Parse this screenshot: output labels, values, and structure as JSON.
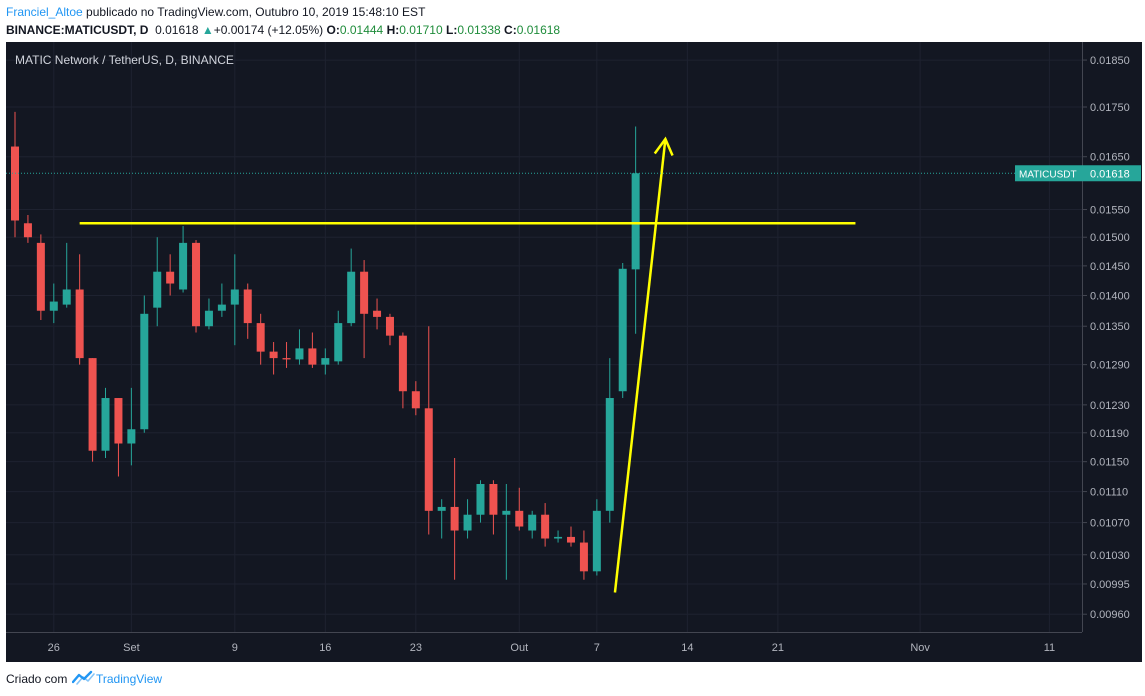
{
  "header": {
    "author": "Franciel_Altoe",
    "published": " publicado no TradingView.com, Outubro 10, 2019 15:48:10 EST",
    "symbol": "BINANCE:MATICUSDT, D",
    "last": "0.01618",
    "up_arrow": "▲",
    "change": "+0.00174 (+12.05%)",
    "o_label": "O:",
    "o_value": "0.01444",
    "h_label": "H:",
    "h_value": "0.01710",
    "l_label": "L:",
    "l_value": "0.01338",
    "c_label": "C:",
    "c_value": "0.01618"
  },
  "footer": {
    "created_with": "Criado com",
    "brand": "TradingView",
    "logo": "tradingview-logo-icon"
  },
  "colors": {
    "background": "#131722",
    "bull": "#26a69a",
    "bear": "#ef5350",
    "annotation": "#ffff00",
    "price_line": "#26a69a",
    "axis_text": "#b2b5be",
    "grid": "#1e2230"
  },
  "chart_data": {
    "type": "candlestick",
    "title": "MATIC Network / TetherUS, D, BINANCE",
    "symbol": "MATICUSDT",
    "last_price_label": "0.01618",
    "scale": "log",
    "ylim": [
      0.0094,
      0.0189
    ],
    "y_ticks": [
      "0.01850",
      "0.01750",
      "0.01650",
      "0.01550",
      "0.01500",
      "0.01450",
      "0.01400",
      "0.01350",
      "0.01290",
      "0.01230",
      "0.01190",
      "0.01150",
      "0.01110",
      "0.01070",
      "0.01030",
      "0.00995",
      "0.00960"
    ],
    "x_ticks": [
      {
        "label": "26",
        "i": 3
      },
      {
        "label": "Set",
        "i": 9
      },
      {
        "label": "9",
        "i": 17
      },
      {
        "label": "16",
        "i": 24
      },
      {
        "label": "23",
        "i": 31
      },
      {
        "label": "Out",
        "i": 39
      },
      {
        "label": "7",
        "i": 45
      },
      {
        "label": "14",
        "i": 52
      },
      {
        "label": "21",
        "i": 59
      },
      {
        "label": "Nov",
        "i": 70
      },
      {
        "label": "11",
        "i": 80
      }
    ],
    "candles": [
      {
        "o": 0.0167,
        "h": 0.0174,
        "l": 0.015,
        "c": 0.0153
      },
      {
        "o": 0.01525,
        "h": 0.0154,
        "l": 0.0149,
        "c": 0.015
      },
      {
        "o": 0.0149,
        "h": 0.01505,
        "l": 0.0136,
        "c": 0.01375
      },
      {
        "o": 0.01375,
        "h": 0.0142,
        "l": 0.01355,
        "c": 0.0139
      },
      {
        "o": 0.01385,
        "h": 0.0149,
        "l": 0.0138,
        "c": 0.0141
      },
      {
        "o": 0.0141,
        "h": 0.0147,
        "l": 0.0129,
        "c": 0.013
      },
      {
        "o": 0.013,
        "h": 0.013,
        "l": 0.0115,
        "c": 0.01165
      },
      {
        "o": 0.01165,
        "h": 0.01255,
        "l": 0.01155,
        "c": 0.0124
      },
      {
        "o": 0.0124,
        "h": 0.0124,
        "l": 0.0113,
        "c": 0.01175
      },
      {
        "o": 0.01175,
        "h": 0.01255,
        "l": 0.01145,
        "c": 0.01195
      },
      {
        "o": 0.01195,
        "h": 0.014,
        "l": 0.0119,
        "c": 0.0137
      },
      {
        "o": 0.0138,
        "h": 0.015,
        "l": 0.0135,
        "c": 0.0144
      },
      {
        "o": 0.0144,
        "h": 0.0147,
        "l": 0.014,
        "c": 0.0142
      },
      {
        "o": 0.0141,
        "h": 0.0152,
        "l": 0.01405,
        "c": 0.0149
      },
      {
        "o": 0.0149,
        "h": 0.01495,
        "l": 0.0134,
        "c": 0.0135
      },
      {
        "o": 0.0135,
        "h": 0.01395,
        "l": 0.01345,
        "c": 0.01375
      },
      {
        "o": 0.01375,
        "h": 0.0142,
        "l": 0.01365,
        "c": 0.01385
      },
      {
        "o": 0.01385,
        "h": 0.0147,
        "l": 0.0132,
        "c": 0.0141
      },
      {
        "o": 0.0141,
        "h": 0.0142,
        "l": 0.0133,
        "c": 0.01355
      },
      {
        "o": 0.01355,
        "h": 0.0137,
        "l": 0.0129,
        "c": 0.0131
      },
      {
        "o": 0.0131,
        "h": 0.01325,
        "l": 0.01275,
        "c": 0.013
      },
      {
        "o": 0.013,
        "h": 0.01325,
        "l": 0.01285,
        "c": 0.01298
      },
      {
        "o": 0.01298,
        "h": 0.01345,
        "l": 0.0129,
        "c": 0.01315
      },
      {
        "o": 0.01315,
        "h": 0.0134,
        "l": 0.01285,
        "c": 0.0129
      },
      {
        "o": 0.0129,
        "h": 0.01315,
        "l": 0.01275,
        "c": 0.013
      },
      {
        "o": 0.01295,
        "h": 0.01375,
        "l": 0.0129,
        "c": 0.01355
      },
      {
        "o": 0.01355,
        "h": 0.0148,
        "l": 0.0135,
        "c": 0.0144
      },
      {
        "o": 0.0144,
        "h": 0.0146,
        "l": 0.013,
        "c": 0.0137
      },
      {
        "o": 0.01375,
        "h": 0.01395,
        "l": 0.01345,
        "c": 0.01365
      },
      {
        "o": 0.01365,
        "h": 0.0137,
        "l": 0.0132,
        "c": 0.01335
      },
      {
        "o": 0.01335,
        "h": 0.0134,
        "l": 0.01225,
        "c": 0.0125
      },
      {
        "o": 0.0125,
        "h": 0.01265,
        "l": 0.01215,
        "c": 0.01225
      },
      {
        "o": 0.01225,
        "h": 0.0135,
        "l": 0.01055,
        "c": 0.01085
      },
      {
        "o": 0.01085,
        "h": 0.011,
        "l": 0.0105,
        "c": 0.0109
      },
      {
        "o": 0.0109,
        "h": 0.01155,
        "l": 0.01,
        "c": 0.0106
      },
      {
        "o": 0.0106,
        "h": 0.011,
        "l": 0.0105,
        "c": 0.0108
      },
      {
        "o": 0.0108,
        "h": 0.01125,
        "l": 0.0107,
        "c": 0.0112
      },
      {
        "o": 0.0112,
        "h": 0.01125,
        "l": 0.01055,
        "c": 0.0108
      },
      {
        "o": 0.0108,
        "h": 0.0112,
        "l": 0.01,
        "c": 0.01085
      },
      {
        "o": 0.01085,
        "h": 0.01115,
        "l": 0.0106,
        "c": 0.01065
      },
      {
        "o": 0.0106,
        "h": 0.01085,
        "l": 0.0105,
        "c": 0.0108
      },
      {
        "o": 0.0108,
        "h": 0.01095,
        "l": 0.0104,
        "c": 0.0105
      },
      {
        "o": 0.0105,
        "h": 0.0106,
        "l": 0.01045,
        "c": 0.01052
      },
      {
        "o": 0.01052,
        "h": 0.01065,
        "l": 0.0104,
        "c": 0.01045
      },
      {
        "o": 0.01045,
        "h": 0.0106,
        "l": 0.01,
        "c": 0.0101
      },
      {
        "o": 0.0101,
        "h": 0.011,
        "l": 0.01005,
        "c": 0.01085
      },
      {
        "o": 0.01085,
        "h": 0.013,
        "l": 0.0107,
        "c": 0.0124
      },
      {
        "o": 0.0125,
        "h": 0.01455,
        "l": 0.0124,
        "c": 0.01445
      },
      {
        "o": 0.01444,
        "h": 0.0171,
        "l": 0.01338,
        "c": 0.01618
      }
    ],
    "annotations": [
      {
        "type": "horizontal-line",
        "y": 0.01525,
        "from_i": 5,
        "to_i": 65
      },
      {
        "type": "arrow",
        "from": {
          "i": 46.4,
          "y": 0.00985
        },
        "to": {
          "i": 50.3,
          "y": 0.01685
        }
      }
    ]
  }
}
